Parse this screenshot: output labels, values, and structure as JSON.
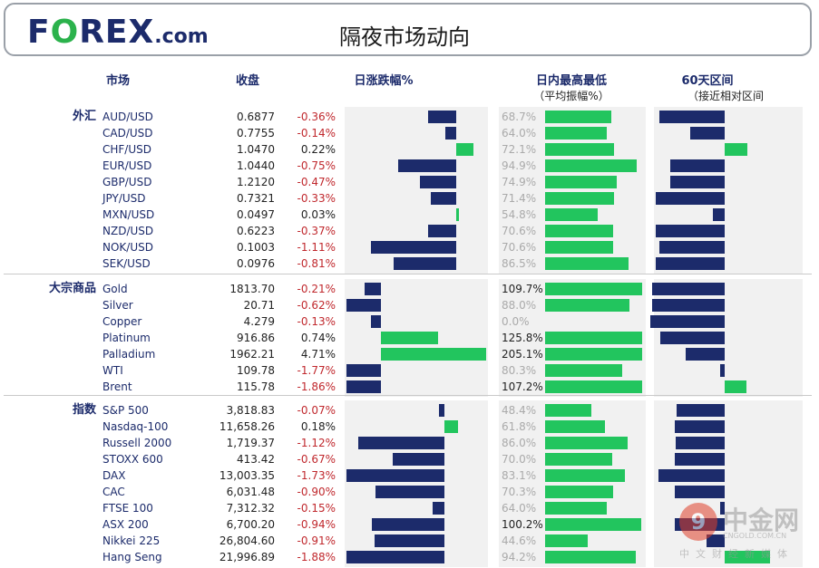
{
  "header": {
    "logo_main": "F",
    "logo_o": "O",
    "logo_rest": "REX",
    "logo_suffix": ".com",
    "title": "隔夜市场动向"
  },
  "columns": {
    "market": "市场",
    "close": "收盘",
    "daily_change": "日涨跌幅%",
    "intraday": "日内最高最低",
    "intraday_sub": "（平均振幅%）",
    "range60": "60天区间",
    "range60_sub": "（接近相对区间"
  },
  "colors": {
    "negative_bar": "#1c2b6b",
    "positive_bar": "#22c55e",
    "negative_text": "#c0282d",
    "panel": "#f1f1f1"
  },
  "chart_data": {
    "type": "table",
    "groups": [
      {
        "name": "外汇",
        "rows": [
          {
            "market": "AUD/USD",
            "close": "0.6877",
            "change": "-0.36%",
            "change_value": -0.36,
            "range_avg": "68.7%",
            "range_value": 68.7,
            "pos60": -0.72
          },
          {
            "market": "CAD/USD",
            "close": "0.7755",
            "change": "-0.14%",
            "change_value": -0.14,
            "range_avg": "64.0%",
            "range_value": 64.0,
            "pos60": -0.38
          },
          {
            "market": "CHF/USD",
            "close": "1.0470",
            "change": "0.22%",
            "change_value": 0.22,
            "range_avg": "72.1%",
            "range_value": 72.1,
            "pos60": 0.25
          },
          {
            "market": "EUR/USD",
            "close": "1.0440",
            "change": "-0.75%",
            "change_value": -0.75,
            "range_avg": "94.9%",
            "range_value": 94.9,
            "pos60": -0.6
          },
          {
            "market": "GBP/USD",
            "close": "1.2120",
            "change": "-0.47%",
            "change_value": -0.47,
            "range_avg": "74.9%",
            "range_value": 74.9,
            "pos60": -0.6
          },
          {
            "market": "JPY/USD",
            "close": "0.7321",
            "change": "-0.33%",
            "change_value": -0.33,
            "range_avg": "71.4%",
            "range_value": 71.4,
            "pos60": -0.76
          },
          {
            "market": "MXN/USD",
            "close": "0.0497",
            "change": "0.03%",
            "change_value": 0.03,
            "range_avg": "54.8%",
            "range_value": 54.8,
            "pos60": -0.13
          },
          {
            "market": "NZD/USD",
            "close": "0.6223",
            "change": "-0.37%",
            "change_value": -0.37,
            "range_avg": "70.6%",
            "range_value": 70.6,
            "pos60": -0.76
          },
          {
            "market": "NOK/USD",
            "close": "0.1003",
            "change": "-1.11%",
            "change_value": -1.11,
            "range_avg": "70.6%",
            "range_value": 70.6,
            "pos60": -0.72
          },
          {
            "market": "SEK/USD",
            "close": "0.0976",
            "change": "-0.81%",
            "change_value": -0.81,
            "range_avg": "86.5%",
            "range_value": 86.5,
            "pos60": -0.76
          }
        ]
      },
      {
        "name": "大宗商品",
        "rows": [
          {
            "market": "Gold",
            "close": "1813.70",
            "change": "-0.21%",
            "change_value": -0.21,
            "range_avg": "109.7%",
            "range_value": 109.7,
            "pos60": -0.8
          },
          {
            "market": "Silver",
            "close": "20.71",
            "change": "-0.62%",
            "change_value": -0.62,
            "range_avg": "88.0%",
            "range_value": 88.0,
            "pos60": -0.8
          },
          {
            "market": "Copper",
            "close": "4.279",
            "change": "-0.13%",
            "change_value": -0.13,
            "range_avg": "0.0%",
            "range_value": 0.0,
            "pos60": -0.82
          },
          {
            "market": "Platinum",
            "close": "916.86",
            "change": "0.74%",
            "change_value": 0.74,
            "range_avg": "125.8%",
            "range_value": 125.8,
            "pos60": -0.71
          },
          {
            "market": "Palladium",
            "close": "1962.21",
            "change": "4.71%",
            "change_value": 4.71,
            "range_avg": "205.1%",
            "range_value": 205.1,
            "pos60": -0.43
          },
          {
            "market": "WTI",
            "close": "109.78",
            "change": "-1.77%",
            "change_value": -1.77,
            "range_avg": "80.3%",
            "range_value": 80.3,
            "pos60": -0.05
          },
          {
            "market": "Brent",
            "close": "115.78",
            "change": "-1.86%",
            "change_value": -1.86,
            "range_avg": "107.2%",
            "range_value": 107.2,
            "pos60": 0.24
          }
        ]
      },
      {
        "name": "指数",
        "rows": [
          {
            "market": "S&P 500",
            "close": "3,818.83",
            "change": "-0.07%",
            "change_value": -0.07,
            "range_avg": "48.4%",
            "range_value": 48.4,
            "pos60": -0.53
          },
          {
            "market": "Nasdaq-100",
            "close": "11,658.26",
            "change": "0.18%",
            "change_value": 0.18,
            "range_avg": "61.8%",
            "range_value": 61.8,
            "pos60": -0.55
          },
          {
            "market": "Russell 2000",
            "close": "1,719.37",
            "change": "-1.12%",
            "change_value": -1.12,
            "range_avg": "86.0%",
            "range_value": 86.0,
            "pos60": -0.54
          },
          {
            "market": "STOXX 600",
            "close": "413.42",
            "change": "-0.67%",
            "change_value": -0.67,
            "range_avg": "70.0%",
            "range_value": 70.0,
            "pos60": -0.55
          },
          {
            "market": "DAX",
            "close": "13,003.35",
            "change": "-1.73%",
            "change_value": -1.73,
            "range_avg": "83.1%",
            "range_value": 83.1,
            "pos60": -0.73
          },
          {
            "market": "CAC",
            "close": "6,031.48",
            "change": "-0.90%",
            "change_value": -0.9,
            "range_avg": "70.3%",
            "range_value": 70.3,
            "pos60": -0.55
          },
          {
            "market": "FTSE 100",
            "close": "7,312.32",
            "change": "-0.15%",
            "change_value": -0.15,
            "range_avg": "64.0%",
            "range_value": 64.0,
            "pos60": -0.05
          },
          {
            "market": "ASX 200",
            "close": "6,700.20",
            "change": "-0.94%",
            "change_value": -0.94,
            "range_avg": "100.2%",
            "range_value": 100.2,
            "pos60": -0.55
          },
          {
            "market": "Nikkei 225",
            "close": "26,804.60",
            "change": "-0.91%",
            "change_value": -0.91,
            "range_avg": "44.6%",
            "range_value": 44.6,
            "pos60": -0.2
          },
          {
            "market": "Hang Seng",
            "close": "21,996.89",
            "change": "-1.88%",
            "change_value": -1.88,
            "range_avg": "94.2%",
            "range_value": 94.2,
            "pos60": 0.5
          }
        ]
      }
    ]
  },
  "watermark": {
    "circle": "9",
    "big": "中金网",
    "small": "CNGOLD.COM.CN",
    "cn": "中文财经新媒体"
  }
}
